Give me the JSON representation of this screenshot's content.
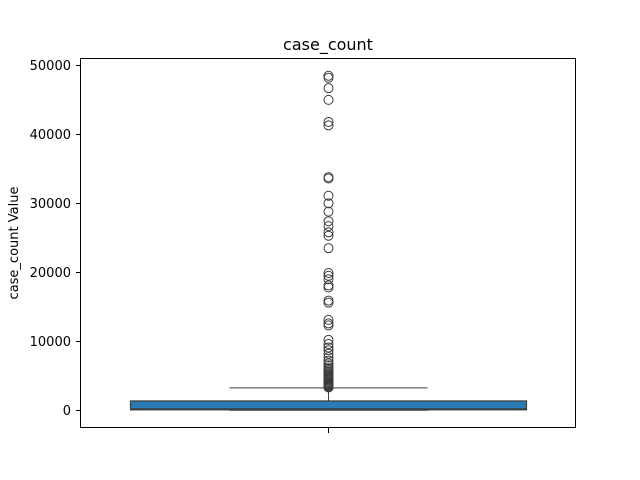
{
  "chart_data": {
    "type": "box",
    "title": "case_count",
    "xlabel": "",
    "ylabel": "case_count Value",
    "ylim": [
      -2500,
      51000
    ],
    "yticks": [
      0,
      10000,
      20000,
      30000,
      40000,
      50000
    ],
    "grid": false,
    "box": {
      "min": 0,
      "q1": 60,
      "median": 200,
      "q3": 1350,
      "whisker_low": 0,
      "whisker_high": 3250,
      "color": "#2a7ab5"
    },
    "outliers": [
      3300,
      3400,
      3500,
      3600,
      3700,
      3800,
      3900,
      4000,
      4150,
      4300,
      4450,
      4600,
      4750,
      4900,
      5050,
      5200,
      5400,
      5600,
      5800,
      6000,
      6200,
      6500,
      6800,
      7200,
      7700,
      8200,
      8700,
      9100,
      9600,
      10200,
      12300,
      12600,
      13100,
      15600,
      15900,
      17800,
      18100,
      19000,
      19500,
      19900,
      23500,
      25300,
      25800,
      26700,
      27400,
      28800,
      30000,
      31100,
      33600,
      33800,
      41300,
      41800,
      45000,
      46700,
      48200,
      48500
    ]
  }
}
